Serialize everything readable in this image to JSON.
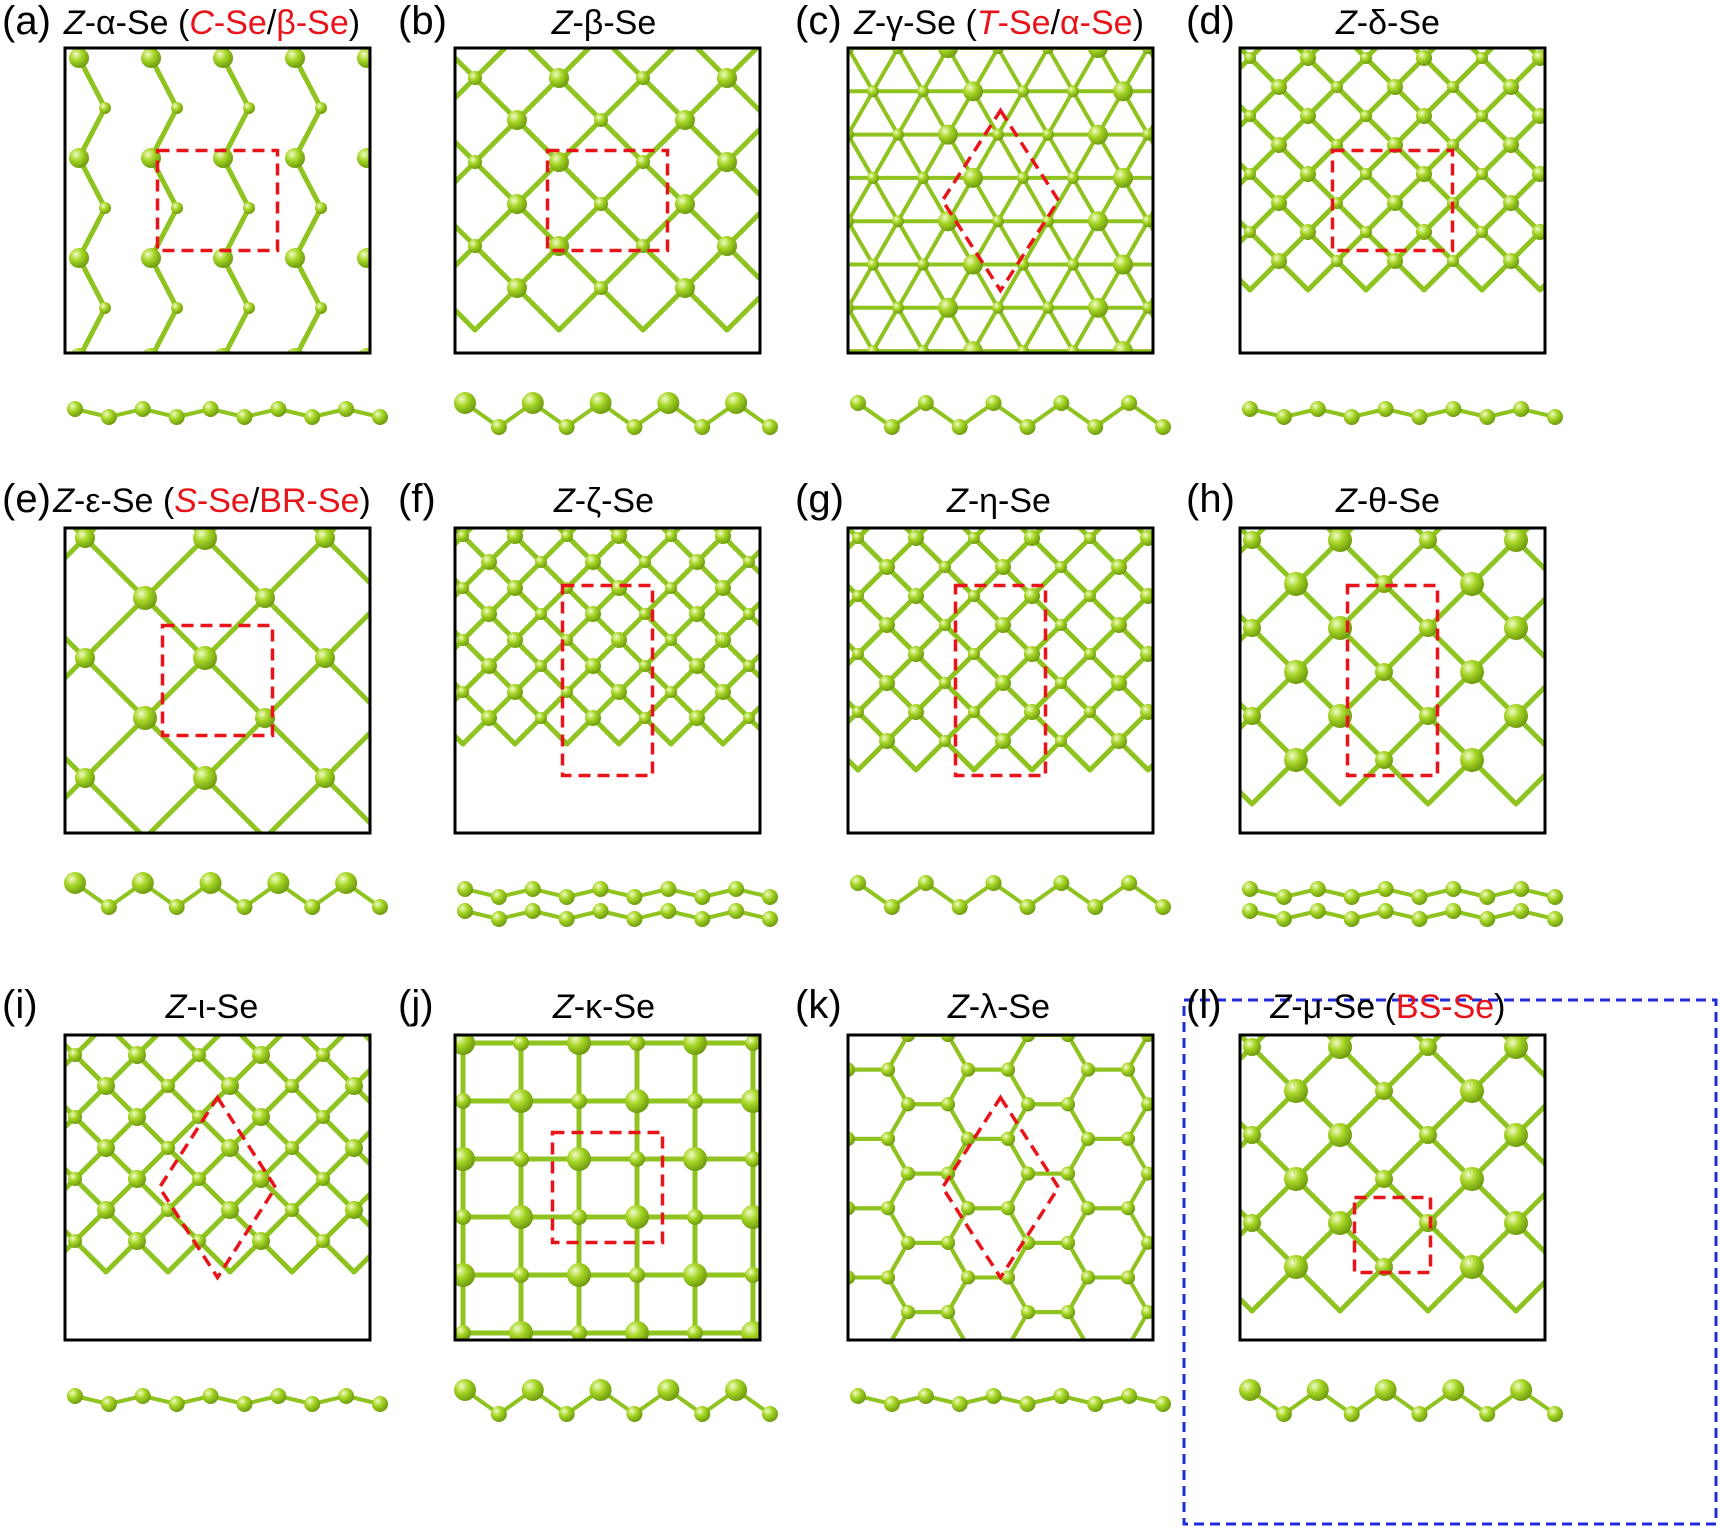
{
  "colors": {
    "atom": "#a6d624",
    "atom_highlight": "#f1fbc8",
    "bond": "#8fc31f",
    "unit_cell": "#e8141a",
    "panel_frame": "#000000",
    "highlight_box": "#1f2bd8",
    "label_red": "#e8141a"
  },
  "panels": [
    {
      "letter": "(a)",
      "prefix": "Z",
      "name": "-α-Se",
      "alias_open": " (",
      "alias1": "C-Se",
      "alias_sep": "/",
      "alias2": "β-Se",
      "alias_close": ")",
      "lattice": "zigzag-chains",
      "cell": "rectangle",
      "side_view": "triangles",
      "highlighted": false
    },
    {
      "letter": "(b)",
      "prefix": "Z",
      "name": "-β-Se",
      "lattice": "irregular-network",
      "cell": "rectangle",
      "side_view": "wave",
      "highlighted": false
    },
    {
      "letter": "(c)",
      "prefix": "Z",
      "name": "-γ-Se",
      "alias_open": " (",
      "alias1": "T-Se",
      "alias_sep": "/",
      "alias2": "α-Se",
      "alias_close": ")",
      "lattice": "hexagonal-star",
      "cell": "rhombus",
      "side_view": "zigzag",
      "highlighted": false
    },
    {
      "letter": "(d)",
      "prefix": "Z",
      "name": "-δ-Se",
      "lattice": "diamond-network",
      "cell": "rectangle",
      "side_view": "flat-chain",
      "highlighted": false
    },
    {
      "letter": "(e)",
      "prefix": "Z",
      "name": "-ε-Se",
      "alias_open": " (",
      "alias1": "S-Se",
      "alias_sep": "/",
      "alias2": "BR-Se",
      "alias_close": ")",
      "lattice": "large-diamond",
      "cell": "square",
      "side_view": "wave",
      "highlighted": false
    },
    {
      "letter": "(f)",
      "prefix": "Z",
      "name": "-ζ-Se",
      "lattice": "dense-network",
      "cell": "tall-rectangle",
      "side_view": "rings",
      "highlighted": false
    },
    {
      "letter": "(g)",
      "prefix": "Z",
      "name": "-η-Se",
      "lattice": "diamond-network",
      "cell": "tall-rectangle",
      "side_view": "zigzag",
      "highlighted": false
    },
    {
      "letter": "(h)",
      "prefix": "Z",
      "name": "-θ-Se",
      "lattice": "square-diamond",
      "cell": "tall-rectangle",
      "side_view": "double-chain",
      "highlighted": false
    },
    {
      "letter": "(i)",
      "prefix": "Z",
      "name": "-ι-Se",
      "lattice": "chevron-network",
      "cell": "rhombus",
      "side_view": "triangles",
      "highlighted": false
    },
    {
      "letter": "(j)",
      "prefix": "Z",
      "name": "-κ-Se",
      "lattice": "square-grid",
      "cell": "square",
      "side_view": "wave",
      "highlighted": false
    },
    {
      "letter": "(k)",
      "prefix": "Z",
      "name": "-λ-Se",
      "lattice": "honeycomb",
      "cell": "rhombus",
      "side_view": "flat-chain",
      "highlighted": false
    },
    {
      "letter": "(l)",
      "prefix": "Z",
      "name": "-μ-Se",
      "alias_open": " (",
      "alias1": "BS-Se",
      "alias_close": ")",
      "lattice": "square-diamond",
      "cell": "small-square",
      "side_view": "wave",
      "highlighted": true
    }
  ]
}
